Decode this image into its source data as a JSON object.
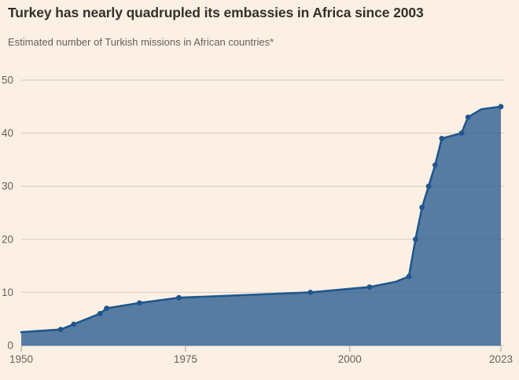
{
  "header": {
    "title": "Turkey has nearly quadrupled its embassies in Africa since 2003",
    "subtitle": "Estimated number of Turkish missions in African countries*"
  },
  "chart_data": {
    "type": "area",
    "title": "Turkey has nearly quadrupled its embassies in Africa since 2003",
    "subtitle": "Estimated number of Turkish missions in African countries*",
    "xlabel": "",
    "ylabel": "Estimated number of Turkish missions in African countries*",
    "x": [
      1950,
      1956,
      1958,
      1962,
      1963,
      1968,
      1974,
      1994,
      2003,
      2007,
      2009,
      2010,
      2011,
      2012,
      2013,
      2014,
      2017,
      2018,
      2020,
      2023
    ],
    "values": [
      2.5,
      3,
      4,
      6,
      7,
      8,
      9,
      10,
      11,
      12,
      13,
      20,
      26,
      30,
      34,
      39,
      40,
      43,
      44.5,
      45
    ],
    "marker_years": [
      1956,
      1958,
      1962,
      1963,
      1968,
      1974,
      1994,
      2003,
      2009,
      2010,
      2011,
      2012,
      2013,
      2014,
      2017,
      2018,
      2023
    ],
    "xlim": [
      1950,
      2023
    ],
    "ylim": [
      0,
      50
    ],
    "yticks": [
      0,
      10,
      20,
      30,
      40,
      50
    ],
    "xticks": [
      1950,
      1975,
      2000,
      2023
    ],
    "grid": true,
    "legend": false,
    "colors": {
      "background": "#FCF0E4",
      "line": "#20568C",
      "dot": "#20568C",
      "fill_opacity": 0.75,
      "gridline": "#D5CABE",
      "tick": "#A59D94",
      "axis_text": "#66605B"
    }
  }
}
